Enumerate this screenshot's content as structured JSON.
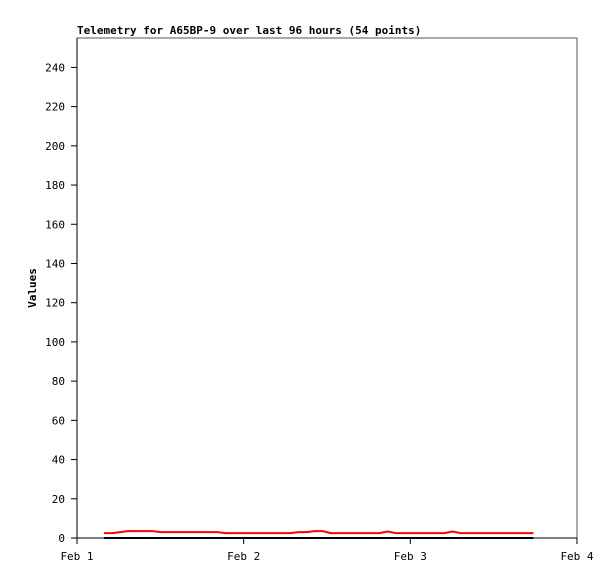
{
  "chart_data": {
    "type": "line",
    "title": "Telemetry for A65BP-9 over last 96 hours (54 points)",
    "xlabel": "",
    "ylabel": "Values",
    "xlim": [
      "Feb 1 00:00",
      "Feb 4 00:00"
    ],
    "ylim": [
      0,
      255
    ],
    "x_ticks": [
      "Feb 1",
      "Feb 2",
      "Feb 3",
      "Feb 4"
    ],
    "y_ticks": [
      0,
      20,
      40,
      60,
      80,
      100,
      120,
      140,
      160,
      180,
      200,
      220,
      240
    ],
    "grid": false,
    "legend": "none",
    "x": [
      "Feb 1 03:54",
      "Feb 1 05:04",
      "Feb 1 06:14",
      "Feb 1 07:24",
      "Feb 1 08:34",
      "Feb 1 09:44",
      "Feb 1 10:54",
      "Feb 1 12:04",
      "Feb 1 13:14",
      "Feb 1 14:24",
      "Feb 1 15:34",
      "Feb 1 16:44",
      "Feb 1 17:54",
      "Feb 1 19:04",
      "Feb 1 20:14",
      "Feb 1 21:24",
      "Feb 1 22:34",
      "Feb 1 23:44",
      "Feb 2 00:54",
      "Feb 2 02:04",
      "Feb 2 03:14",
      "Feb 2 04:24",
      "Feb 2 05:34",
      "Feb 2 06:44",
      "Feb 2 07:54",
      "Feb 2 09:04",
      "Feb 2 10:14",
      "Feb 2 11:24",
      "Feb 2 12:34",
      "Feb 2 13:44",
      "Feb 2 14:54",
      "Feb 2 16:04",
      "Feb 2 17:14",
      "Feb 2 18:24",
      "Feb 2 19:34",
      "Feb 2 20:44",
      "Feb 2 21:54",
      "Feb 2 23:04",
      "Feb 3 00:14",
      "Feb 3 01:24",
      "Feb 3 02:34",
      "Feb 3 03:44",
      "Feb 3 04:54",
      "Feb 3 06:04",
      "Feb 3 07:14",
      "Feb 3 08:24",
      "Feb 3 09:34",
      "Feb 3 10:44",
      "Feb 3 11:54",
      "Feb 3 13:04",
      "Feb 3 14:14",
      "Feb 3 15:24",
      "Feb 3 16:34",
      "Feb 3 17:44"
    ],
    "series": [
      {
        "color": "#ff0000",
        "values": [
          2.5,
          2.5,
          3,
          3.5,
          3.5,
          3.5,
          3.5,
          3,
          3,
          3,
          3,
          3,
          3,
          3,
          3,
          2.5,
          2.5,
          2.5,
          2.5,
          2.5,
          2.5,
          2.5,
          2.5,
          2.5,
          3,
          3,
          3.5,
          3.5,
          2.5,
          2.5,
          2.5,
          2.5,
          2.5,
          2.5,
          2.5,
          3.3,
          2.5,
          2.5,
          2.5,
          2.5,
          2.5,
          2.5,
          2.5,
          3.3,
          2.5,
          2.5,
          2.5,
          2.5,
          2.5,
          2.5,
          2.5,
          2.5,
          2.5,
          2.5
        ]
      },
      {
        "color": "#000000",
        "values": [
          0,
          0,
          0,
          0,
          0,
          0,
          0,
          0,
          0,
          0,
          0,
          0,
          0,
          0,
          0,
          0,
          0,
          0,
          0,
          0,
          0,
          0,
          0,
          0,
          0,
          0,
          0,
          0,
          0,
          0,
          0,
          0,
          0,
          0,
          0,
          0,
          0,
          0,
          0,
          0,
          0,
          0,
          0,
          0,
          0,
          0,
          0,
          0,
          0,
          0,
          0,
          0,
          0,
          0
        ]
      }
    ]
  }
}
